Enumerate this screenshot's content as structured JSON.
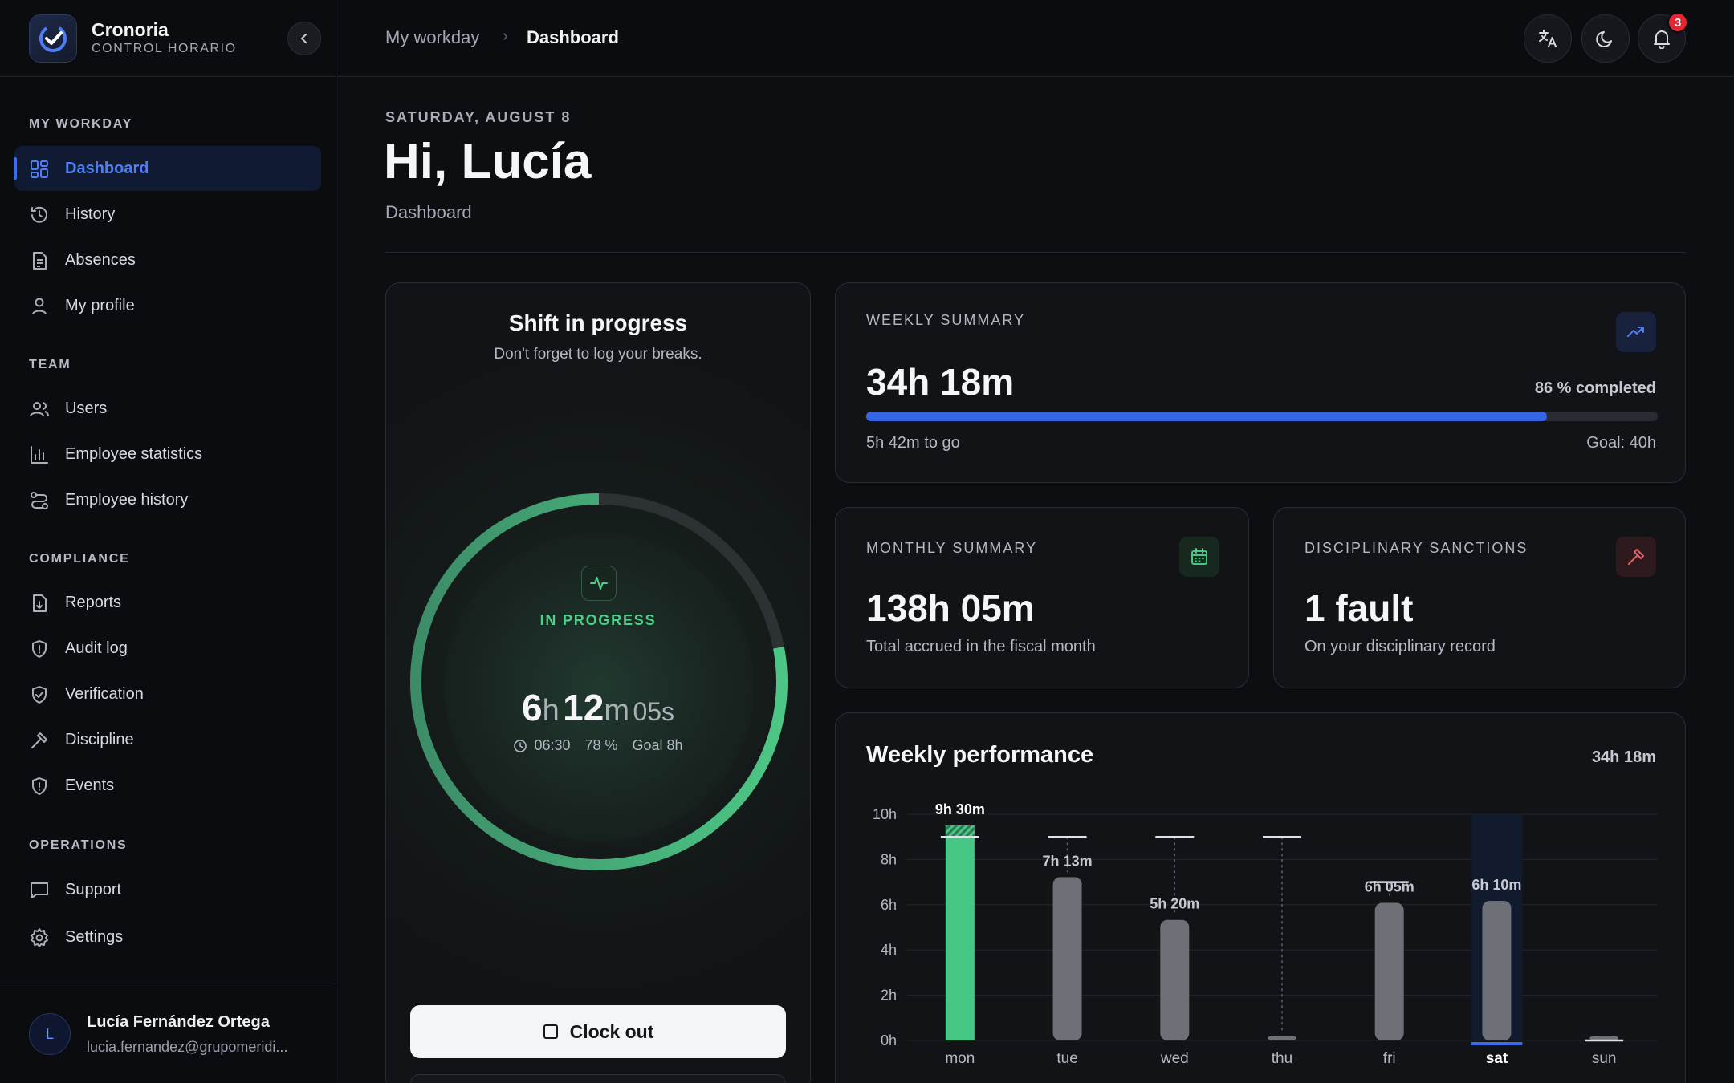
{
  "app": {
    "name": "Cronoria",
    "subtitle": "CONTROL HORARIO"
  },
  "sidebar": {
    "sections": [
      {
        "title": "MY WORKDAY",
        "items": [
          {
            "label": "Dashboard",
            "icon": "grid-icon",
            "active": true
          },
          {
            "label": "History",
            "icon": "history-icon"
          },
          {
            "label": "Absences",
            "icon": "document-icon"
          },
          {
            "label": "My profile",
            "icon": "user-icon"
          }
        ]
      },
      {
        "title": "TEAM",
        "items": [
          {
            "label": "Users",
            "icon": "users-icon"
          },
          {
            "label": "Employee statistics",
            "icon": "bar-chart-icon"
          },
          {
            "label": "Employee history",
            "icon": "route-icon"
          }
        ]
      },
      {
        "title": "COMPLIANCE",
        "items": [
          {
            "label": "Reports",
            "icon": "file-download-icon"
          },
          {
            "label": "Audit log",
            "icon": "shield-alert-icon"
          },
          {
            "label": "Verification",
            "icon": "shield-check-icon"
          },
          {
            "label": "Discipline",
            "icon": "gavel-icon"
          },
          {
            "label": "Events",
            "icon": "shield-exclamation-icon"
          }
        ]
      },
      {
        "title": "OPERATIONS",
        "items": [
          {
            "label": "Support",
            "icon": "message-icon"
          },
          {
            "label": "Settings",
            "icon": "gear-icon"
          }
        ]
      }
    ],
    "user": {
      "initial": "L",
      "name": "Lucía Fernández Ortega",
      "email": "lucia.fernandez@grupomeridi..."
    }
  },
  "topbar": {
    "breadcrumb": [
      "My workday",
      "Dashboard"
    ],
    "notifications_count": "3"
  },
  "header": {
    "date": "SATURDAY, AUGUST 8",
    "greeting": "Hi, Lucía",
    "subtitle": "Dashboard"
  },
  "shift": {
    "title": "Shift in progress",
    "subtitle": "Don't forget to log your breaks.",
    "status": "IN PROGRESS",
    "hours": "6",
    "hours_unit": "h",
    "minutes": "12",
    "minutes_unit": "m",
    "seconds": "05s",
    "start_time": "06:30",
    "percent": "78 %",
    "goal": "Goal 8h",
    "progress_fraction": 0.78,
    "clock_out_label": "Clock out"
  },
  "weekly_summary": {
    "label": "WEEKLY SUMMARY",
    "value": "34h 18m",
    "percent_label": "86 % completed",
    "progress_fraction": 0.86,
    "to_go": "5h 42m to go",
    "goal": "Goal: 40h"
  },
  "monthly_summary": {
    "label": "MONTHLY SUMMARY",
    "value": "138h 05m",
    "subtitle": "Total accrued in the fiscal month"
  },
  "sanctions": {
    "label": "DISCIPLINARY SANCTIONS",
    "value": "1 fault",
    "subtitle": "On your disciplinary record"
  },
  "chart_data": {
    "type": "bar",
    "title": "Weekly performance",
    "total": "34h 18m",
    "categories": [
      "mon",
      "tue",
      "wed",
      "thu",
      "fri",
      "sat",
      "sun"
    ],
    "values": [
      9.5,
      7.22,
      5.33,
      0.2,
      6.08,
      6.17,
      0.2
    ],
    "labels": [
      "9h 30m",
      "7h 13m",
      "5h 20m",
      "",
      "6h 05m",
      "6h 10m",
      ""
    ],
    "targets": [
      9,
      9,
      9,
      9,
      7,
      null,
      0
    ],
    "highlight_index": 0,
    "current_index": 5,
    "y_ticks": [
      "0h",
      "2h",
      "4h",
      "6h",
      "8h",
      "10h"
    ],
    "ylim": [
      0,
      10
    ],
    "colors": {
      "highlight": "#46c884",
      "default": "#6e7078",
      "current": "#3b6cf0"
    }
  }
}
